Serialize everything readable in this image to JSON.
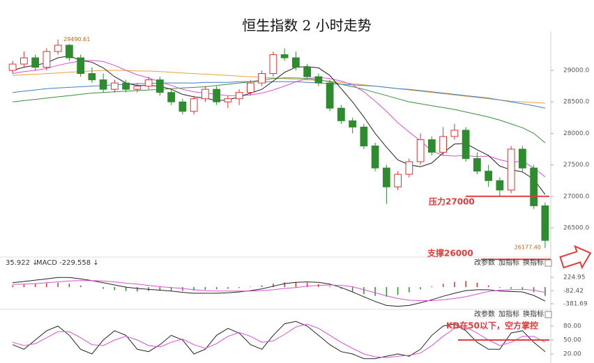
{
  "chart_data": [
    {
      "type": "candlestick",
      "title": "恒生指数 2 小时走势",
      "candles": [
        [
          29000,
          29150,
          28950,
          29100
        ],
        [
          29100,
          29300,
          29050,
          29200
        ],
        [
          29200,
          29250,
          29000,
          29050
        ],
        [
          29050,
          29350,
          29000,
          29300
        ],
        [
          29300,
          29490.61,
          29250,
          29400
        ],
        [
          29400,
          29420,
          29150,
          29200
        ],
        [
          29200,
          29250,
          28900,
          28950
        ],
        [
          28950,
          29050,
          28800,
          28850
        ],
        [
          28850,
          28950,
          28650,
          28700
        ],
        [
          28700,
          28850,
          28650,
          28800
        ],
        [
          28800,
          28850,
          28650,
          28700
        ],
        [
          28700,
          28800,
          28650,
          28750
        ],
        [
          28750,
          28900,
          28700,
          28850
        ],
        [
          28850,
          28900,
          28600,
          28650
        ],
        [
          28650,
          28700,
          28450,
          28500
        ],
        [
          28500,
          28550,
          28300,
          28350
        ],
        [
          28350,
          28600,
          28300,
          28550
        ],
        [
          28550,
          28750,
          28500,
          28700
        ],
        [
          28700,
          28750,
          28450,
          28500
        ],
        [
          28500,
          28600,
          28400,
          28550
        ],
        [
          28550,
          28700,
          28450,
          28650
        ],
        [
          28650,
          28850,
          28600,
          28800
        ],
        [
          28800,
          29000,
          28750,
          28950
        ],
        [
          28950,
          29300,
          28900,
          29250
        ],
        [
          29250,
          29350,
          29150,
          29200
        ],
        [
          29200,
          29300,
          29000,
          29050
        ],
        [
          29050,
          29100,
          28850,
          28900
        ],
        [
          28900,
          28950,
          28750,
          28800
        ],
        [
          28800,
          28850,
          28350,
          28400
        ],
        [
          28400,
          28450,
          28150,
          28200
        ],
        [
          28200,
          28250,
          28000,
          28100
        ],
        [
          28100,
          28150,
          27750,
          27800
        ],
        [
          27800,
          27850,
          27400,
          27450
        ],
        [
          27450,
          27500,
          26880,
          27150
        ],
        [
          27150,
          27400,
          27100,
          27350
        ],
        [
          27350,
          27600,
          27300,
          27550
        ],
        [
          27550,
          28000,
          27500,
          27900
        ],
        [
          27900,
          27950,
          27650,
          27700
        ],
        [
          27700,
          28100,
          27650,
          27950
        ],
        [
          27950,
          28150,
          27900,
          28050
        ],
        [
          28050,
          28100,
          27550,
          27600
        ],
        [
          27600,
          27700,
          27350,
          27400
        ],
        [
          27400,
          27500,
          27150,
          27250
        ],
        [
          27250,
          27300,
          27000,
          27100
        ],
        [
          27100,
          27800,
          27050,
          27750
        ],
        [
          27750,
          27800,
          27400,
          27450
        ],
        [
          27450,
          27500,
          26800,
          26850
        ],
        [
          26850,
          26900,
          26177.4,
          26300
        ]
      ],
      "up_color": "#e03030",
      "down_color": "#2e8b2e",
      "series": [
        {
          "color": "#e8a33a",
          "values": [
            28920,
            28930,
            28940,
            28950,
            28960,
            28970,
            28980,
            28990,
            29000,
            29000,
            29000,
            28990,
            28990,
            28980,
            28970,
            28960,
            28950,
            28940,
            28930,
            28920,
            28910,
            28900,
            28890,
            28880,
            28870,
            28860,
            28850,
            28840,
            28830,
            28810,
            28790,
            28770,
            28750,
            28730,
            28710,
            28690,
            28670,
            28650,
            28630,
            28610,
            28590,
            28570,
            28550,
            28530,
            28510,
            28500,
            28490,
            28480
          ]
        },
        {
          "color": "#3b7fc4",
          "values": [
            28650,
            28670,
            28690,
            28710,
            28720,
            28730,
            28740,
            28750,
            28760,
            28770,
            28780,
            28790,
            28790,
            28800,
            28800,
            28800,
            28800,
            28810,
            28810,
            28810,
            28820,
            28820,
            28820,
            28820,
            28820,
            28820,
            28810,
            28800,
            28790,
            28780,
            28770,
            28760,
            28750,
            28730,
            28710,
            28700,
            28680,
            28660,
            28640,
            28620,
            28600,
            28580,
            28560,
            28530,
            28500,
            28470,
            28440,
            28400
          ]
        },
        {
          "color": "#3a8f3a",
          "values": [
            28500,
            28520,
            28540,
            28560,
            28580,
            28600,
            28620,
            28640,
            28650,
            28660,
            28670,
            28680,
            28690,
            28700,
            28710,
            28720,
            28730,
            28740,
            28760,
            28780,
            28800,
            28820,
            28850,
            28870,
            28880,
            28880,
            28870,
            28850,
            28820,
            28780,
            28740,
            28700,
            28650,
            28600,
            28550,
            28500,
            28470,
            28440,
            28410,
            28380,
            28340,
            28300,
            28260,
            28210,
            28150,
            28090,
            28000,
            27850
          ]
        },
        {
          "color": "#d94fd9",
          "values": [
            28950,
            28980,
            29000,
            29030,
            29080,
            29120,
            29150,
            29160,
            29140,
            29080,
            29000,
            28930,
            28880,
            28820,
            28760,
            28700,
            28660,
            28640,
            28620,
            28600,
            28600,
            28610,
            28640,
            28690,
            28750,
            28820,
            28870,
            28890,
            28870,
            28830,
            28770,
            28660,
            28510,
            28350,
            28170,
            28020,
            27880,
            27720,
            27650,
            27640,
            27650,
            27630,
            27640,
            27580,
            27540,
            27560,
            27450,
            27310
          ]
        },
        {
          "color": "#222222",
          "values": [
            29000,
            29050,
            29080,
            29120,
            29200,
            29230,
            29160,
            29130,
            29040,
            28900,
            28800,
            28760,
            28760,
            28750,
            28700,
            28620,
            28580,
            28560,
            28520,
            28530,
            28580,
            28640,
            28700,
            28830,
            28970,
            29050,
            29060,
            29040,
            28920,
            28710,
            28500,
            28260,
            28000,
            27780,
            27580,
            27500,
            27470,
            27530,
            27690,
            27830,
            27840,
            27740,
            27650,
            27480,
            27420,
            27390,
            27270,
            27030
          ]
        }
      ],
      "max_label": "29490.61",
      "min_label": "26177.40",
      "ylim": [
        25980,
        29620
      ],
      "yticks": [
        {
          "value": 29000,
          "label": "29000.0"
        },
        {
          "value": 28500,
          "label": "28500.0"
        },
        {
          "value": 28000,
          "label": "28000.0"
        },
        {
          "value": 27500,
          "label": "27500.0"
        },
        {
          "value": 27000,
          "label": "27000.0"
        },
        {
          "value": 26500,
          "label": "26500.0"
        }
      ],
      "levels": [
        {
          "value": 27000,
          "label": "压力27000",
          "color": "#e23b3b"
        },
        {
          "value": 26000,
          "label": "支撑26000",
          "color": "#e23b3b"
        }
      ]
    },
    {
      "type": "macd",
      "header": [
        "35.922 ↓",
        "MACD -229.558 ↓"
      ],
      "buttons": [
        "改参数",
        "加指标",
        "换指标"
      ],
      "histogram": {
        "up_color": "#e03030",
        "down_color": "#2e8b2e",
        "values": [
          40,
          60,
          80,
          90,
          100,
          80,
          40,
          0,
          -40,
          -70,
          -90,
          -100,
          -90,
          -80,
          -80,
          -90,
          -80,
          -60,
          -50,
          -40,
          -20,
          10,
          40,
          80,
          110,
          120,
          100,
          70,
          20,
          -40,
          -100,
          -160,
          -200,
          -220,
          -180,
          -120,
          -50,
          20,
          80,
          120,
          140,
          100,
          40,
          -20,
          -40,
          -60,
          -120,
          -200
        ]
      },
      "series": [
        {
          "color": "#222222",
          "values": [
            100,
            130,
            160,
            190,
            220,
            220,
            190,
            150,
            100,
            50,
            0,
            -30,
            -50,
            -70,
            -90,
            -120,
            -140,
            -140,
            -140,
            -130,
            -110,
            -80,
            -40,
            20,
            80,
            110,
            120,
            110,
            70,
            -10,
            -110,
            -220,
            -330,
            -420,
            -440,
            -420,
            -360,
            -290,
            -210,
            -140,
            -80,
            -60,
            -60,
            -90,
            -100,
            -110,
            -190,
            -320
          ]
        },
        {
          "color": "#d94fd9",
          "values": [
            60,
            70,
            80,
            100,
            120,
            140,
            150,
            150,
            140,
            120,
            90,
            70,
            40,
            10,
            -10,
            -30,
            -60,
            -80,
            -90,
            -90,
            -90,
            -90,
            -80,
            -60,
            -30,
            -10,
            20,
            40,
            50,
            40,
            10,
            -60,
            -130,
            -200,
            -260,
            -300,
            -310,
            -310,
            -290,
            -260,
            -220,
            -160,
            -100,
            -70,
            -60,
            -50,
            -70,
            -120
          ]
        }
      ],
      "ylim": [
        -446,
        641
      ],
      "yticks": [
        224.95,
        -82.42,
        -381.69
      ]
    },
    {
      "type": "line",
      "buttons": [
        "改参数",
        "加指标",
        "换指标"
      ],
      "series": [
        {
          "color": "#222222",
          "values": [
            40,
            30,
            50,
            70,
            80,
            60,
            30,
            20,
            50,
            70,
            60,
            30,
            25,
            40,
            60,
            50,
            20,
            30,
            60,
            75,
            65,
            40,
            30,
            60,
            85,
            90,
            80,
            60,
            40,
            25,
            20,
            10,
            10,
            15,
            20,
            15,
            30,
            60,
            80,
            85,
            70,
            45,
            30,
            30,
            65,
            70,
            45,
            25
          ]
        },
        {
          "color": "#d94fd9",
          "values": [
            45,
            38,
            42,
            55,
            68,
            68,
            55,
            40,
            38,
            50,
            58,
            50,
            38,
            35,
            45,
            52,
            40,
            32,
            42,
            58,
            66,
            58,
            45,
            48,
            62,
            78,
            84,
            75,
            60,
            45,
            32,
            20,
            14,
            12,
            15,
            17,
            22,
            38,
            58,
            75,
            78,
            65,
            50,
            38,
            45,
            58,
            58,
            45
          ]
        }
      ],
      "ylim": [
        2,
        95
      ],
      "yticks": [
        {
          "value": 80,
          "label": "80.00"
        },
        {
          "value": 50,
          "label": "50.00"
        },
        {
          "value": 20,
          "label": "20.00"
        }
      ],
      "levels": [
        {
          "value": 50,
          "label": "KD在50以下，空方掌控",
          "color": "#e23b3b"
        }
      ]
    }
  ]
}
